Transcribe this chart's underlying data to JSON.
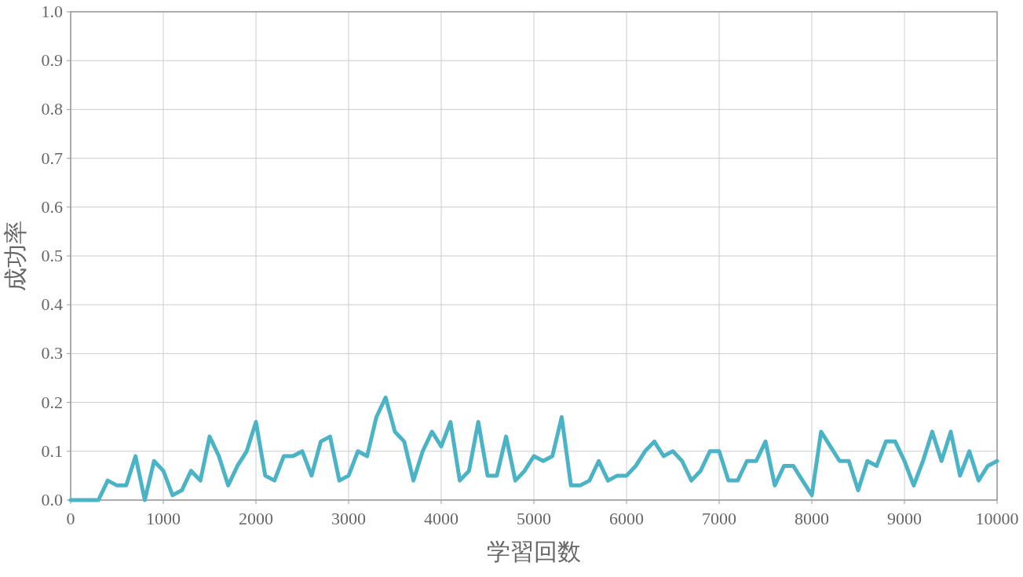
{
  "chart_data": {
    "type": "line",
    "xlabel": "学習回数",
    "ylabel": "成功率",
    "x": [
      0,
      100,
      200,
      300,
      400,
      500,
      600,
      700,
      800,
      900,
      1000,
      1100,
      1200,
      1300,
      1400,
      1500,
      1600,
      1700,
      1800,
      1900,
      2000,
      2100,
      2200,
      2300,
      2400,
      2500,
      2600,
      2700,
      2800,
      2900,
      3000,
      3100,
      3200,
      3300,
      3400,
      3500,
      3600,
      3700,
      3800,
      3900,
      4000,
      4100,
      4200,
      4300,
      4400,
      4500,
      4600,
      4700,
      4800,
      4900,
      5000,
      5100,
      5200,
      5300,
      5400,
      5500,
      5600,
      5700,
      5800,
      5900,
      6000,
      6100,
      6200,
      6300,
      6400,
      6500,
      6600,
      6700,
      6800,
      6900,
      7000,
      7100,
      7200,
      7300,
      7400,
      7500,
      7600,
      7700,
      7800,
      7900,
      8000,
      8100,
      8200,
      8300,
      8400,
      8500,
      8600,
      8700,
      8800,
      8900,
      9000,
      9100,
      9200,
      9300,
      9400,
      9500,
      9600,
      9700,
      9800,
      9900,
      10000
    ],
    "series": [
      {
        "color": "#4bb3c6",
        "values": [
          0,
          0,
          0,
          0,
          0.04,
          0.03,
          0.03,
          0.09,
          0,
          0.08,
          0.06,
          0.01,
          0.02,
          0.06,
          0.04,
          0.13,
          0.09,
          0.03,
          0.07,
          0.1,
          0.16,
          0.05,
          0.04,
          0.09,
          0.09,
          0.1,
          0.05,
          0.12,
          0.13,
          0.04,
          0.05,
          0.1,
          0.09,
          0.17,
          0.21,
          0.14,
          0.12,
          0.04,
          0.1,
          0.14,
          0.11,
          0.16,
          0.04,
          0.06,
          0.16,
          0.05,
          0.05,
          0.13,
          0.04,
          0.06,
          0.09,
          0.08,
          0.09,
          0.17,
          0.03,
          0.03,
          0.04,
          0.08,
          0.04,
          0.05,
          0.05,
          0.07,
          0.1,
          0.12,
          0.09,
          0.1,
          0.08,
          0.04,
          0.06,
          0.1,
          0.1,
          0.04,
          0.04,
          0.08,
          0.08,
          0.12,
          0.03,
          0.07,
          0.07,
          0.04,
          0.01,
          0.14,
          0.11,
          0.08,
          0.08,
          0.02,
          0.08,
          0.07,
          0.12,
          0.12,
          0.08,
          0.03,
          0.08,
          0.14,
          0.08,
          0.14,
          0.05,
          0.1,
          0.04,
          0.07,
          0.08
        ]
      }
    ],
    "xlim": [
      0,
      10000
    ],
    "ylim": [
      0,
      1
    ],
    "xticks": [
      0,
      1000,
      2000,
      3000,
      4000,
      5000,
      6000,
      7000,
      8000,
      9000,
      10000
    ],
    "yticks": [
      {
        "value": 0,
        "label": "0.0"
      },
      {
        "value": 0.1,
        "label": "0.1"
      },
      {
        "value": 0.2,
        "label": "0.2"
      },
      {
        "value": 0.3,
        "label": "0.3"
      },
      {
        "value": 0.4,
        "label": "0.4"
      },
      {
        "value": 0.5,
        "label": "0.5"
      },
      {
        "value": 0.6,
        "label": "0.6"
      },
      {
        "value": 0.7,
        "label": "0.7"
      },
      {
        "value": 0.8,
        "label": "0.8"
      },
      {
        "value": 0.9,
        "label": "0.9"
      },
      {
        "value": 1,
        "label": "1.0"
      }
    ],
    "grid": true,
    "marker": "none",
    "line_style": "solid"
  }
}
